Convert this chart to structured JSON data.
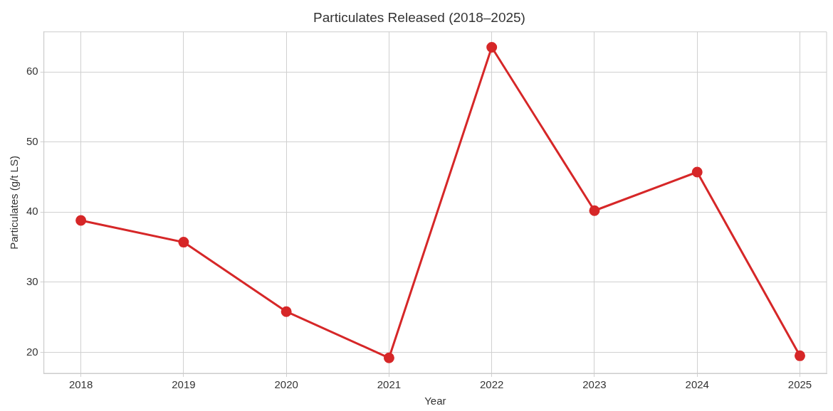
{
  "chart_data": {
    "type": "line",
    "title": "Particulates Released (2018–2025)",
    "xlabel": "Year",
    "ylabel": "Particulates (g/t LS)",
    "x": [
      2018,
      2019,
      2020,
      2021,
      2022,
      2023,
      2024,
      2025
    ],
    "series": [
      {
        "color": "#d62728",
        "values": [
          38.8,
          35.7,
          25.8,
          19.2,
          63.5,
          40.2,
          45.7,
          19.5
        ]
      }
    ],
    "xlim": [
      2017.64,
      2025.26
    ],
    "xticks": [
      2018,
      2019,
      2020,
      2021,
      2022,
      2023,
      2024,
      2025
    ],
    "ylim": [
      17,
      65.7
    ],
    "yticks": [
      20,
      30,
      40,
      50,
      60
    ],
    "grid": true,
    "legend": false,
    "marker": "circle",
    "line_style": "solid"
  }
}
